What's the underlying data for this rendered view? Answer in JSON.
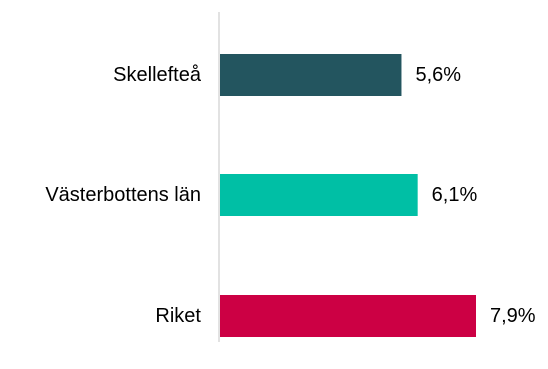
{
  "chart_data": {
    "type": "bar",
    "orientation": "horizontal",
    "categories": [
      "Skellefteå",
      "Västerbottens län",
      "Riket"
    ],
    "values": [
      5.6,
      6.1,
      7.9
    ],
    "value_labels": [
      "5,6%",
      "6,1%",
      "7,9%"
    ],
    "colors": [
      "#23555f",
      "#00bfa5",
      "#cc0044"
    ],
    "axis_color": "#d9d9d9",
    "xlim": [
      0,
      7.9
    ],
    "title": "",
    "xlabel": "",
    "ylabel": "",
    "grid": false,
    "legend": "none"
  }
}
